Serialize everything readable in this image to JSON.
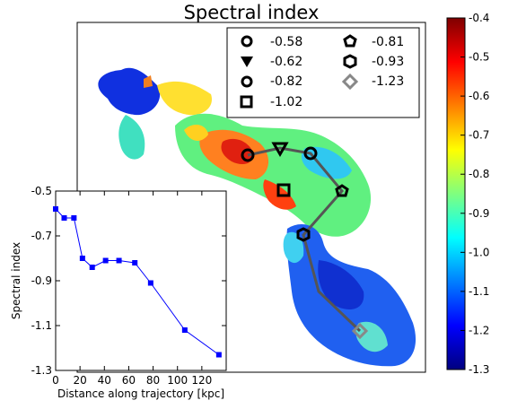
{
  "title": "Spectral index",
  "legend": [
    {
      "marker": "circle-icon",
      "label": "-0.58"
    },
    {
      "marker": "triangle-down-icon",
      "label": "-0.62"
    },
    {
      "marker": "ring-icon",
      "label": "-0.82"
    },
    {
      "marker": "square-icon",
      "label": "-1.02"
    },
    {
      "marker": "pentagon-icon",
      "label": "-0.81"
    },
    {
      "marker": "hexagon-icon",
      "label": "-0.93"
    },
    {
      "marker": "diamond-icon",
      "label": "-1.23"
    }
  ],
  "colorbar": {
    "min": -1.3,
    "max": -0.4,
    "ticks": [
      "-1.3",
      "-1.2",
      "-1.1",
      "-1.0",
      "-0.9",
      "-0.8",
      "-0.7",
      "-0.6",
      "-0.5",
      "-0.4"
    ],
    "colors": [
      "#00007f",
      "#0000ff",
      "#007fff",
      "#00ffff",
      "#7fff7f",
      "#ffff00",
      "#ff7f00",
      "#ff0000",
      "#7f0000"
    ]
  },
  "chart_data": {
    "type": "line",
    "xlabel": "Distance along trajectory [kpc]",
    "ylabel": "Spectral index",
    "xlim": [
      0,
      140
    ],
    "ylim": [
      -1.3,
      -0.5
    ],
    "xticks": [
      "0",
      "20",
      "40",
      "60",
      "80",
      "100",
      "120"
    ],
    "yticks": [
      "-0.5",
      "-0.7",
      "-0.9",
      "-1.1",
      "-1.3"
    ],
    "series": [
      {
        "color": "#0000ff",
        "x": [
          0,
          7,
          15,
          22,
          30,
          41,
          52,
          65,
          78,
          106,
          134
        ],
        "y": [
          -0.58,
          -0.62,
          -0.62,
          -0.8,
          -0.84,
          -0.81,
          -0.81,
          -0.82,
          -0.91,
          -1.12,
          -1.23
        ]
      }
    ]
  }
}
